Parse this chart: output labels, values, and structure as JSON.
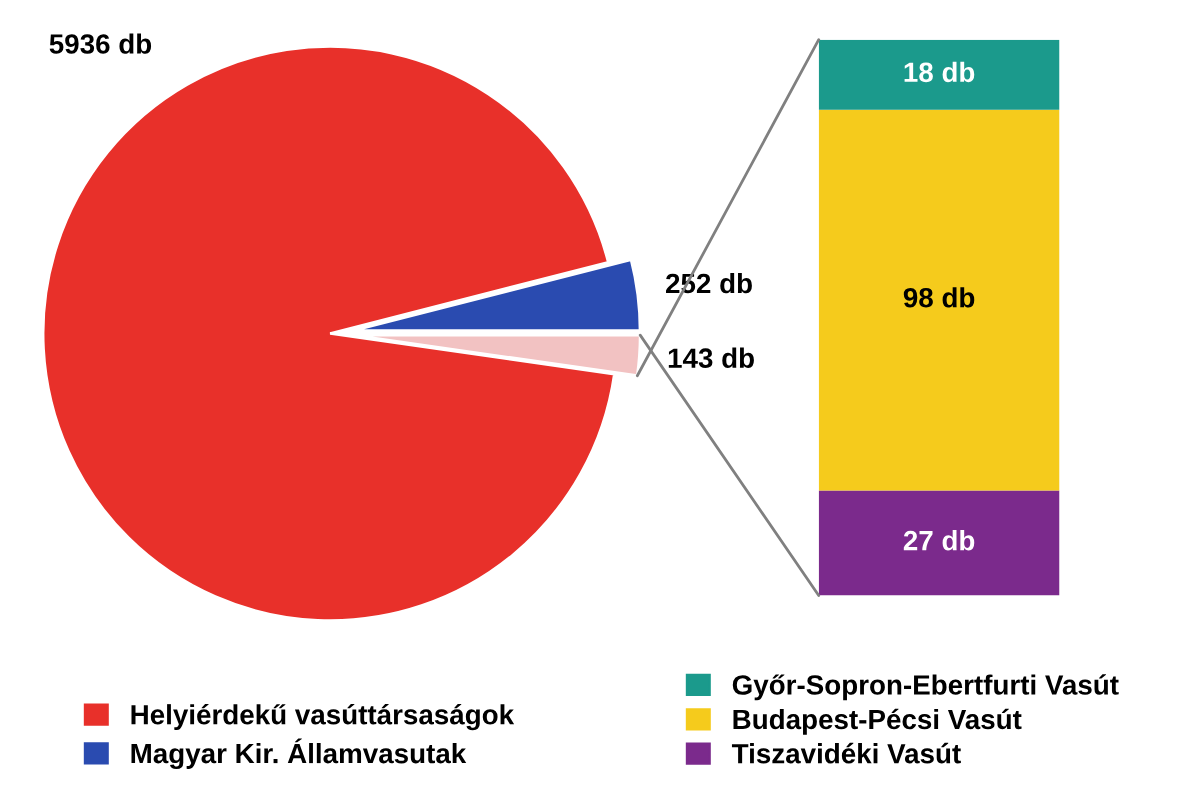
{
  "chart_data": [
    {
      "type": "pie",
      "categories": [
        "Helyiérdekű vasúttársaságok",
        "Magyar Kir. Államvasutak",
        null
      ],
      "values": [
        5936,
        252,
        143
      ],
      "colors": [
        "#e8302a",
        "#2a4bb0",
        "#f2c2c2"
      ],
      "value_labels": [
        "5936 db",
        "252 db",
        "143 db"
      ],
      "legend": "bottom"
    },
    {
      "type": "bar",
      "stacked": true,
      "categories": [
        null
      ],
      "tick_labels": false,
      "legend": "bottom",
      "series": [
        {
          "name": "Tiszavidéki Vasút",
          "color": "#7b2a8c",
          "values": [
            27
          ],
          "value_labels": [
            "27 db"
          ]
        },
        {
          "name": "Budapest-Pécsi Vasút",
          "color": "#f5cb1c",
          "values": [
            98
          ],
          "value_labels": [
            "98 db"
          ]
        },
        {
          "name": "Győr-Sopron-Ebertfurti Vasút",
          "color": "#1b9a8c",
          "values": [
            18
          ],
          "value_labels": [
            "18 db"
          ]
        }
      ]
    }
  ]
}
